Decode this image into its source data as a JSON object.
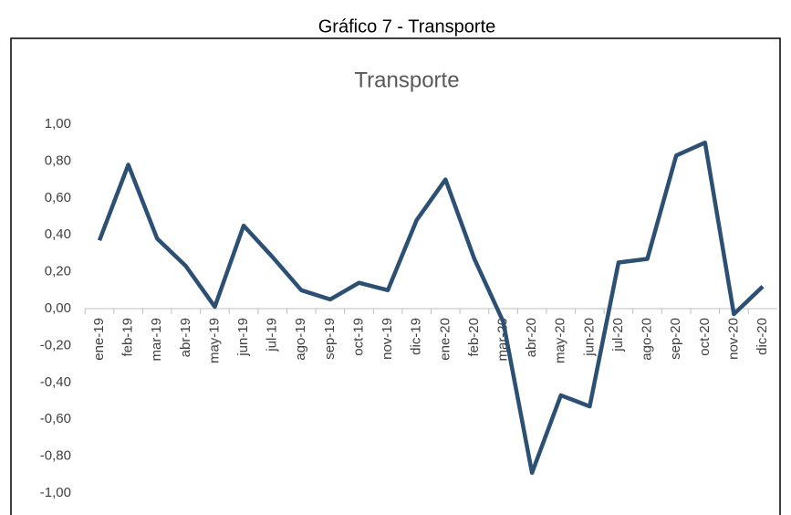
{
  "caption": "Gráfico  7 - Transporte",
  "chart_data": {
    "type": "line",
    "title": "Transporte",
    "categories": [
      "ene-19",
      "feb-19",
      "mar-19",
      "abr-19",
      "may-19",
      "jun-19",
      "jul-19",
      "ago-19",
      "sep-19",
      "oct-19",
      "nov-19",
      "dic-19",
      "ene-20",
      "feb-20",
      "mar-20",
      "abr-20",
      "may-20",
      "jun-20",
      "jul-20",
      "ago-20",
      "sep-20",
      "oct-20",
      "nov-20",
      "dic-20"
    ],
    "series": [
      {
        "color": "#2b5073",
        "values": [
          0.37,
          0.78,
          0.38,
          0.23,
          0.01,
          0.45,
          0.28,
          0.1,
          0.05,
          0.14,
          0.1,
          0.48,
          0.7,
          0.27,
          -0.07,
          -0.89,
          -0.47,
          -0.53,
          0.25,
          0.27,
          0.83,
          0.9,
          -0.03,
          0.12
        ]
      }
    ],
    "ylim": [
      -1,
      1
    ],
    "yticks": [
      {
        "value": 1,
        "label": "1,00"
      },
      {
        "value": 0.8,
        "label": "0,80"
      },
      {
        "value": 0.6,
        "label": "0,60"
      },
      {
        "value": 0.4,
        "label": "0,40"
      },
      {
        "value": 0.2,
        "label": "0,20"
      },
      {
        "value": 0,
        "label": "0,00"
      },
      {
        "value": -0.2,
        "label": "-0,20"
      },
      {
        "value": -0.4,
        "label": "-0,40"
      },
      {
        "value": -0.6,
        "label": "-0,60"
      },
      {
        "value": -0.8,
        "label": "-0,80"
      },
      {
        "value": -1,
        "label": "-1,00"
      }
    ]
  }
}
